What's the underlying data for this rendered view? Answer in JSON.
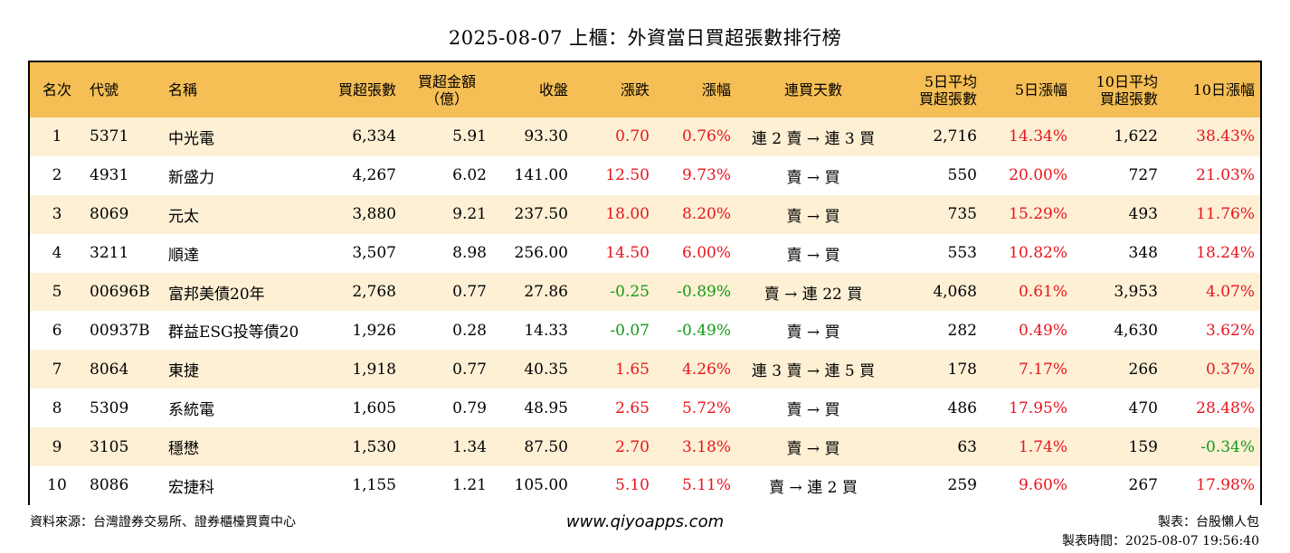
{
  "title": "2025-08-07 上櫃：外資當日買超張數排行榜",
  "colors": {
    "header_bg": "#F6BF55",
    "stripe_bg": "#FDF0D5",
    "up": "#E8141C",
    "down": "#129A16"
  },
  "headers": {
    "rank": "名次",
    "code": "代號",
    "name": "名稱",
    "net_buy": "買超張數",
    "amount_1": "買超金額",
    "amount_2": "（億）",
    "close": "收盤",
    "change": "漲跌",
    "pct": "漲幅",
    "streak": "連買天數",
    "avg5_1": "5日平均",
    "avg5_2": "買超張數",
    "pct5": "5日漲幅",
    "avg10_1": "10日平均",
    "avg10_2": "買超張數",
    "pct10": "10日漲幅"
  },
  "rows": [
    {
      "rank": "1",
      "code": "5371",
      "name": "中光電",
      "net_buy": "6,334",
      "amount": "5.91",
      "close": "93.30",
      "change": "0.70",
      "pct": "0.76%",
      "streak": "連 2 賣 → 連 3 買",
      "avg5": "2,716",
      "pct5": "14.34%",
      "avg10": "1,622",
      "pct10": "38.43%"
    },
    {
      "rank": "2",
      "code": "4931",
      "name": "新盛力",
      "net_buy": "4,267",
      "amount": "6.02",
      "close": "141.00",
      "change": "12.50",
      "pct": "9.73%",
      "streak": "賣 → 買",
      "avg5": "550",
      "pct5": "20.00%",
      "avg10": "727",
      "pct10": "21.03%"
    },
    {
      "rank": "3",
      "code": "8069",
      "name": "元太",
      "net_buy": "3,880",
      "amount": "9.21",
      "close": "237.50",
      "change": "18.00",
      "pct": "8.20%",
      "streak": "賣 → 買",
      "avg5": "735",
      "pct5": "15.29%",
      "avg10": "493",
      "pct10": "11.76%"
    },
    {
      "rank": "4",
      "code": "3211",
      "name": "順達",
      "net_buy": "3,507",
      "amount": "8.98",
      "close": "256.00",
      "change": "14.50",
      "pct": "6.00%",
      "streak": "賣 → 買",
      "avg5": "553",
      "pct5": "10.82%",
      "avg10": "348",
      "pct10": "18.24%"
    },
    {
      "rank": "5",
      "code": "00696B",
      "name": "富邦美債20年",
      "net_buy": "2,768",
      "amount": "0.77",
      "close": "27.86",
      "change": "-0.25",
      "pct": "-0.89%",
      "streak": "賣 → 連 22 買",
      "avg5": "4,068",
      "pct5": "0.61%",
      "avg10": "3,953",
      "pct10": "4.07%"
    },
    {
      "rank": "6",
      "code": "00937B",
      "name": "群益ESG投等債20",
      "net_buy": "1,926",
      "amount": "0.28",
      "close": "14.33",
      "change": "-0.07",
      "pct": "-0.49%",
      "streak": "賣 → 買",
      "avg5": "282",
      "pct5": "0.49%",
      "avg10": "4,630",
      "pct10": "3.62%"
    },
    {
      "rank": "7",
      "code": "8064",
      "name": "東捷",
      "net_buy": "1,918",
      "amount": "0.77",
      "close": "40.35",
      "change": "1.65",
      "pct": "4.26%",
      "streak": "連 3 賣 → 連 5 買",
      "avg5": "178",
      "pct5": "7.17%",
      "avg10": "266",
      "pct10": "0.37%"
    },
    {
      "rank": "8",
      "code": "5309",
      "name": "系統電",
      "net_buy": "1,605",
      "amount": "0.79",
      "close": "48.95",
      "change": "2.65",
      "pct": "5.72%",
      "streak": "賣 → 買",
      "avg5": "486",
      "pct5": "17.95%",
      "avg10": "470",
      "pct10": "28.48%"
    },
    {
      "rank": "9",
      "code": "3105",
      "name": "穩懋",
      "net_buy": "1,530",
      "amount": "1.34",
      "close": "87.50",
      "change": "2.70",
      "pct": "3.18%",
      "streak": "賣 → 買",
      "avg5": "63",
      "pct5": "1.74%",
      "avg10": "159",
      "pct10": "-0.34%"
    },
    {
      "rank": "10",
      "code": "8086",
      "name": "宏捷科",
      "net_buy": "1,155",
      "amount": "1.21",
      "close": "105.00",
      "change": "5.10",
      "pct": "5.11%",
      "streak": "賣 → 連 2 買",
      "avg5": "259",
      "pct5": "9.60%",
      "avg10": "267",
      "pct10": "17.98%"
    }
  ],
  "footer": {
    "source": "資料來源：台灣證券交易所、證券櫃檯買賣中心",
    "website": "www.qiyoapps.com",
    "author": "製表：台股懶人包",
    "timestamp": "製表時間：2025-08-07 19:56:40"
  }
}
